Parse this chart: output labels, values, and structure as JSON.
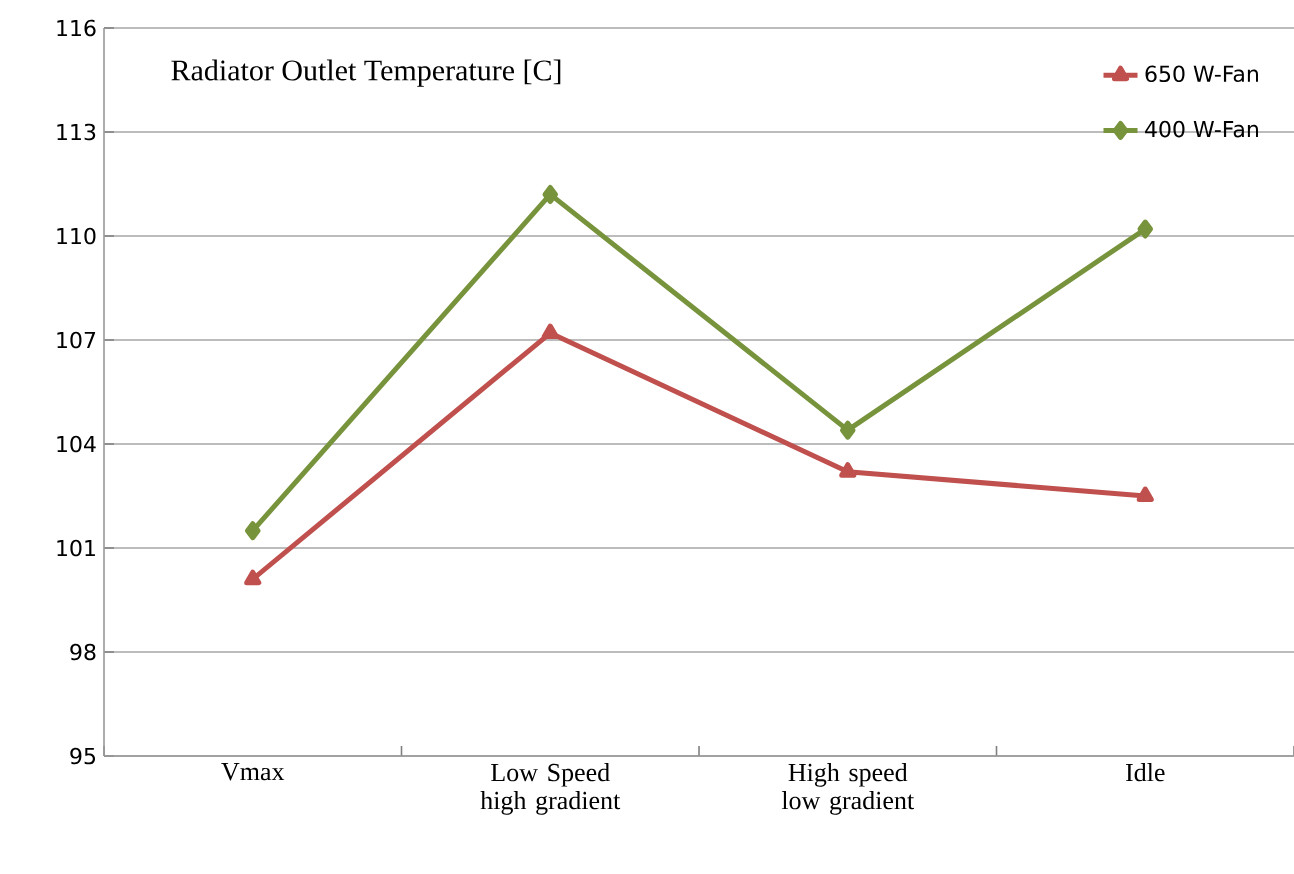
{
  "chart_data": {
    "type": "line",
    "title": "Radiator Outlet Temperature [C]",
    "categories": [
      "Vmax",
      "Low Speed high gradient",
      "High speed low gradient",
      "Idle"
    ],
    "series": [
      {
        "name": "650 W-Fan",
        "color": "#c0504d",
        "marker": "triangle",
        "values": [
          100.1,
          107.2,
          103.2,
          102.5
        ]
      },
      {
        "name": "400 W-Fan",
        "color": "#77933c",
        "marker": "diamond",
        "values": [
          101.5,
          111.2,
          104.4,
          110.2
        ]
      }
    ],
    "ylim": [
      95,
      116
    ],
    "yticks": [
      95,
      98,
      101,
      104,
      107,
      110,
      113,
      116
    ],
    "grid": "y",
    "legend": "top right"
  }
}
